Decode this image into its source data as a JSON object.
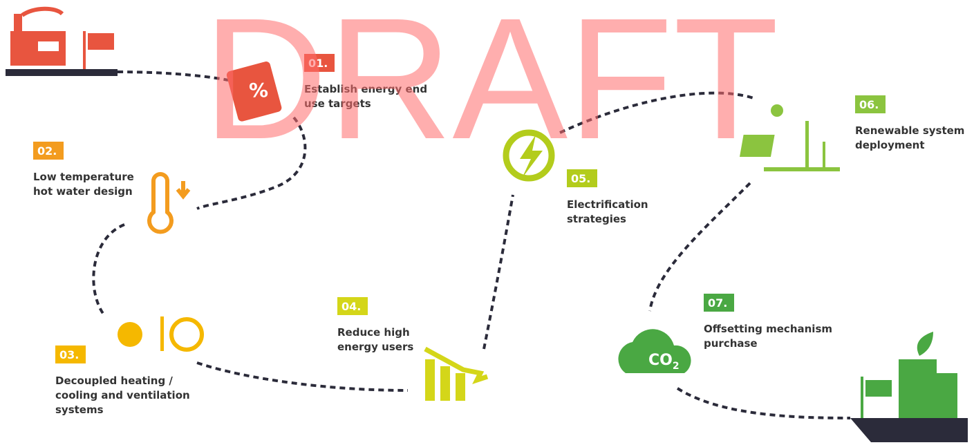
{
  "watermark": "DRAFT",
  "steps": [
    {
      "number": "01.",
      "lines": [
        "Establish energy end",
        "use targets"
      ]
    },
    {
      "number": "02.",
      "lines": [
        "Low temperature",
        "hot water design"
      ]
    },
    {
      "number": "03.",
      "lines": [
        "Decoupled heating /",
        "cooling and ventilation",
        "systems"
      ]
    },
    {
      "number": "04.",
      "lines": [
        "Reduce high",
        "energy users"
      ]
    },
    {
      "number": "05.",
      "lines": [
        "Electrification",
        "strategies"
      ]
    },
    {
      "number": "06.",
      "lines": [
        "Renewable system",
        "deployment"
      ]
    },
    {
      "number": "07.",
      "lines": [
        "Offsetting mechanism",
        "purchase"
      ]
    }
  ],
  "co2_icon": {
    "main": "CO",
    "sub": "2"
  }
}
